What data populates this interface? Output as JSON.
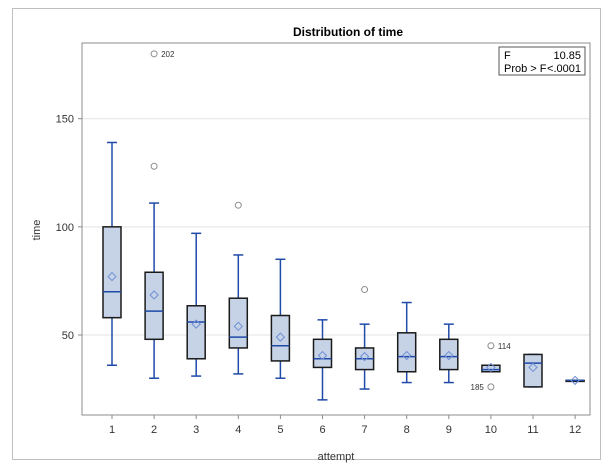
{
  "chart_data": {
    "type": "box",
    "title": "Distribution of time",
    "xlabel": "attempt",
    "ylabel": "time",
    "ylim": [
      13,
      185
    ],
    "yticks": [
      50,
      100,
      150
    ],
    "grid": true,
    "categories": [
      "1",
      "2",
      "3",
      "4",
      "5",
      "6",
      "7",
      "8",
      "9",
      "10",
      "11",
      "12"
    ],
    "boxes": [
      {
        "category": "1",
        "min": 36,
        "q1": 58,
        "median": 70,
        "q3": 100,
        "max": 139,
        "mean": 77,
        "outliers": []
      },
      {
        "category": "2",
        "min": 30,
        "q1": 48,
        "median": 61,
        "q3": 79,
        "max": 111,
        "mean": 68.5,
        "outliers": [
          {
            "value": 180,
            "label": "202"
          },
          {
            "value": 128,
            "label": ""
          }
        ]
      },
      {
        "category": "3",
        "min": 31,
        "q1": 39,
        "median": 56,
        "q3": 63.5,
        "max": 97,
        "mean": 55,
        "outliers": []
      },
      {
        "category": "4",
        "min": 32,
        "q1": 44,
        "median": 49,
        "q3": 67,
        "max": 87,
        "mean": 54,
        "outliers": [
          {
            "value": 110,
            "label": ""
          }
        ]
      },
      {
        "category": "5",
        "min": 30,
        "q1": 38,
        "median": 45,
        "q3": 59,
        "max": 85,
        "mean": 49,
        "outliers": []
      },
      {
        "category": "6",
        "min": 20,
        "q1": 35,
        "median": 39,
        "q3": 48,
        "max": 57,
        "mean": 40.5,
        "outliers": []
      },
      {
        "category": "7",
        "min": 25,
        "q1": 34,
        "median": 39,
        "q3": 44,
        "max": 55,
        "mean": 40,
        "outliers": [
          {
            "value": 71,
            "label": ""
          }
        ]
      },
      {
        "category": "8",
        "min": 28,
        "q1": 33,
        "median": 40,
        "q3": 51,
        "max": 65,
        "mean": 40.5,
        "outliers": []
      },
      {
        "category": "9",
        "min": 28,
        "q1": 34,
        "median": 40,
        "q3": 48,
        "max": 55,
        "mean": 40.5,
        "outliers": []
      },
      {
        "category": "10",
        "min": 33,
        "q1": 33,
        "median": 34,
        "q3": 36,
        "max": 36,
        "mean": 35,
        "outliers": [
          {
            "value": 45,
            "label": "114"
          },
          {
            "value": 26,
            "label": "185"
          }
        ]
      },
      {
        "category": "11",
        "min": 26,
        "q1": 26,
        "median": 37,
        "q3": 41,
        "max": 41,
        "mean": 35,
        "outliers": []
      },
      {
        "category": "12",
        "min": 29,
        "q1": 29,
        "median": 29,
        "q3": 29,
        "max": 29,
        "mean": 29,
        "outliers": []
      }
    ],
    "legend": {
      "placement": "top-right",
      "rows": [
        {
          "label": "F",
          "value": "10.85"
        },
        {
          "label": "Prob > F",
          "value": "<.0001"
        }
      ]
    },
    "colors": {
      "box_fill": "#c6d2e5",
      "box_stroke": "#1a1a1a",
      "whisker": "#1f4aa8",
      "median": "#1f4aa8",
      "mean_marker": "#6f8fd6",
      "outlier": "#8c8c8c",
      "grid": "#e3e3e3",
      "axis": "#8c8c8c"
    }
  }
}
